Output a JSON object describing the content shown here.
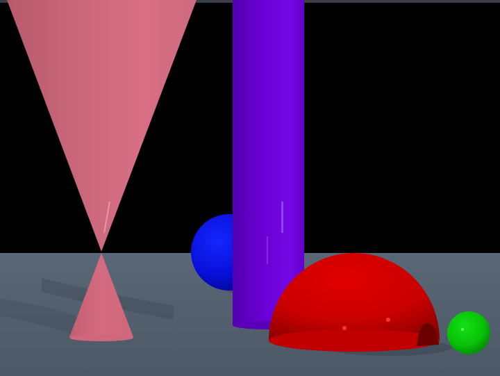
{
  "scene": {
    "objects": [
      {
        "id": "pink-double-cone",
        "shape": "double cone",
        "color": "#d36a80"
      },
      {
        "id": "purple-cylinder",
        "shape": "cylinder",
        "color": "#6a00d4"
      },
      {
        "id": "blue-sphere",
        "shape": "sphere",
        "color": "#0a14e6"
      },
      {
        "id": "red-hemisphere",
        "shape": "hemisphere",
        "color": "#cc0000"
      },
      {
        "id": "green-sphere",
        "shape": "sphere",
        "color": "#0bc40b"
      }
    ],
    "colors": {
      "sky": "#000000",
      "floor": "#546170",
      "top_bar": "#3a3f45"
    }
  }
}
